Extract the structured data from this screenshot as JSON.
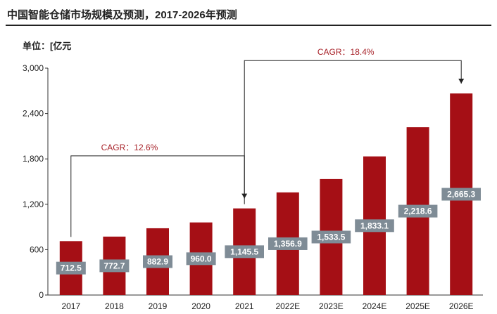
{
  "header": {
    "title": "中国智能仓储市场规模及预测，2017-2026年预测",
    "unit": "单位：[亿元"
  },
  "chart_data": {
    "type": "bar",
    "title": "中国智能仓储市场规模及预测，2017-2026年预测",
    "ylabel": "单位：[亿元",
    "xlabel": "",
    "categories": [
      "2017",
      "2018",
      "2019",
      "2020",
      "2021",
      "2022E",
      "2023E",
      "2024E",
      "2025E",
      "2026E"
    ],
    "values": [
      712.5,
      772.7,
      882.9,
      960.0,
      1145.5,
      1356.9,
      1533.5,
      1833.1,
      2218.6,
      2665.3
    ],
    "data_labels": [
      "712.5",
      "772.7",
      "882.9",
      "960.0",
      "1,145.5",
      "1,356.9",
      "1,533.5",
      "1,833.1",
      "2,218.6",
      "2,665.3"
    ],
    "ylim": [
      0,
      3000
    ],
    "yticks": [
      0,
      600,
      1200,
      1800,
      2400,
      3000
    ],
    "ytick_labels": [
      "0",
      "600",
      "1,200",
      "1,800",
      "2,400",
      "3,000"
    ],
    "grid": false,
    "bar_color": "#a50f15",
    "label_box_color": "#7f8c96",
    "annotations": [
      {
        "text": "CAGR：12.6%",
        "from": "2017",
        "to": "2021",
        "level": 1840
      },
      {
        "text": "CAGR：18.4%",
        "from": "2021",
        "to": "2026E",
        "level": 3100
      }
    ]
  }
}
